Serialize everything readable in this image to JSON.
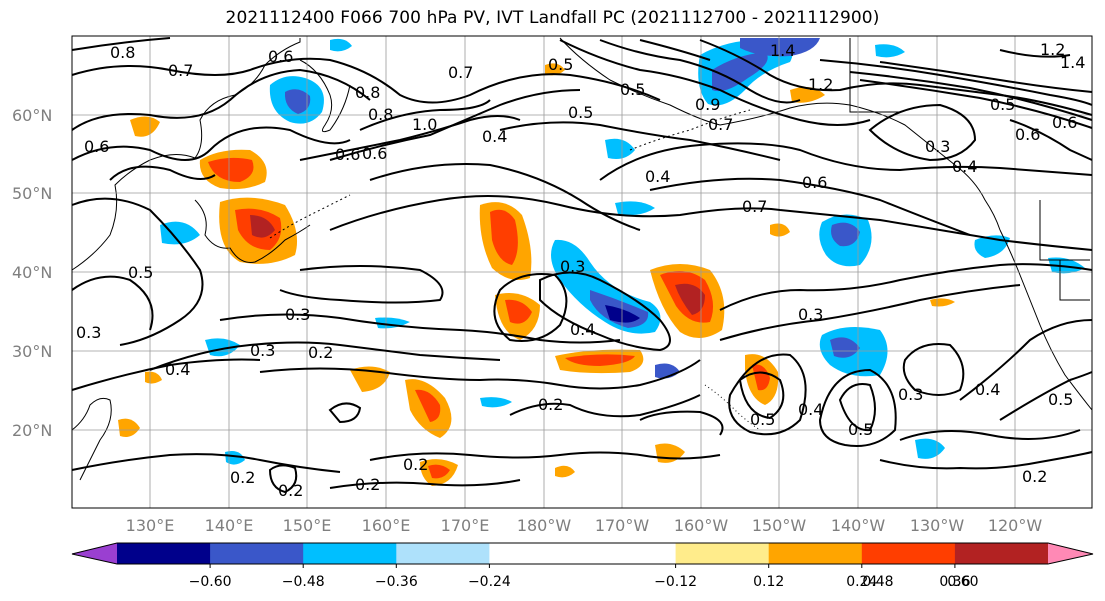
{
  "title": "2021112400 F066 700 hPa PV, IVT Landfall PC (2021112700 - 2021112900)",
  "lat_labels": [
    "60°N",
    "50°N",
    "40°N",
    "30°N",
    "20°N"
  ],
  "lon_labels": [
    "130°E",
    "140°E",
    "150°E",
    "160°E",
    "170°E",
    "180°W",
    "170°W",
    "160°W",
    "150°W",
    "140°W",
    "130°W",
    "120°W"
  ],
  "colorbar": {
    "colors": [
      "#9a3fd1",
      "#00008b",
      "#3a57c9",
      "#00bfff",
      "#aee1fb",
      "#ffffff",
      "#ffffff",
      "#ffec8b",
      "#ffa500",
      "#ff3e00",
      "#b22222",
      "#ff89b5"
    ],
    "tick_labels": [
      "−0.60",
      "−0.48",
      "−0.36",
      "−0.24",
      "−0.12",
      "0.12",
      "0.24",
      "0.36",
      "0.48",
      "0.60"
    ]
  },
  "contour_labels": [
    "0.8",
    "0.6",
    "0.7",
    "0.8",
    "0.6",
    "0.5",
    "0.6",
    "0.8",
    "0.7",
    "0.6",
    "1.0",
    "0.5",
    "0.4",
    "1.4",
    "1.2",
    "0.9",
    "0.7",
    "0.5",
    "0.6",
    "1.2",
    "1.4",
    "0.6",
    "0.4",
    "0.3",
    "0.5",
    "0.6",
    "0.7",
    "0.5",
    "0.4",
    "0.3",
    "0.3",
    "0.4",
    "0.3",
    "0.2",
    "0.3",
    "0.2",
    "0.2",
    "0.4",
    "0.2",
    "0.2",
    "0.2",
    "0.5",
    "0.4",
    "0.5",
    "0.3",
    "0.4",
    "0.5",
    "0.2",
    "0.3"
  ]
}
